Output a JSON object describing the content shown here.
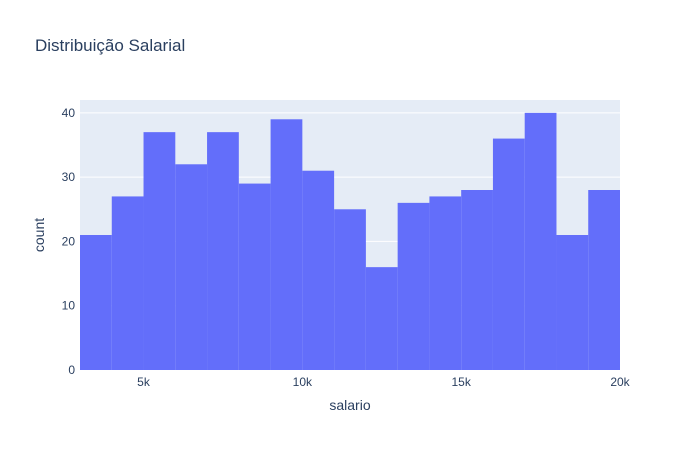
{
  "chart_data": {
    "type": "bar",
    "subtype": "histogram",
    "title": "Distribuição Salarial",
    "xlabel": "salario",
    "ylabel": "count",
    "xlim": [
      3000,
      20000
    ],
    "ylim": [
      0,
      42
    ],
    "x_ticks": [
      {
        "value": 5000,
        "label": "5k"
      },
      {
        "value": 10000,
        "label": "10k"
      },
      {
        "value": 15000,
        "label": "15k"
      },
      {
        "value": 20000,
        "label": "20k"
      }
    ],
    "y_ticks": [
      {
        "value": 0,
        "label": "0"
      },
      {
        "value": 10,
        "label": "10"
      },
      {
        "value": 20,
        "label": "20"
      },
      {
        "value": 30,
        "label": "30"
      },
      {
        "value": 40,
        "label": "40"
      }
    ],
    "bins": [
      {
        "start": 3000,
        "end": 4000,
        "count": 21
      },
      {
        "start": 4000,
        "end": 5000,
        "count": 27
      },
      {
        "start": 5000,
        "end": 6000,
        "count": 37
      },
      {
        "start": 6000,
        "end": 7000,
        "count": 32
      },
      {
        "start": 7000,
        "end": 8000,
        "count": 37
      },
      {
        "start": 8000,
        "end": 9000,
        "count": 29
      },
      {
        "start": 9000,
        "end": 10000,
        "count": 39
      },
      {
        "start": 10000,
        "end": 11000,
        "count": 31
      },
      {
        "start": 11000,
        "end": 12000,
        "count": 25
      },
      {
        "start": 12000,
        "end": 13000,
        "count": 16
      },
      {
        "start": 13000,
        "end": 14000,
        "count": 26
      },
      {
        "start": 14000,
        "end": 15000,
        "count": 27
      },
      {
        "start": 15000,
        "end": 16000,
        "count": 28
      },
      {
        "start": 16000,
        "end": 17000,
        "count": 36
      },
      {
        "start": 17000,
        "end": 18000,
        "count": 40
      },
      {
        "start": 18000,
        "end": 19000,
        "count": 21
      },
      {
        "start": 19000,
        "end": 20000,
        "count": 28
      }
    ],
    "grid": true,
    "colors": {
      "bar": "#636efa",
      "plot_background": "#e5ecf6",
      "grid": "#ffffff",
      "text": "#2a3f5f"
    }
  }
}
